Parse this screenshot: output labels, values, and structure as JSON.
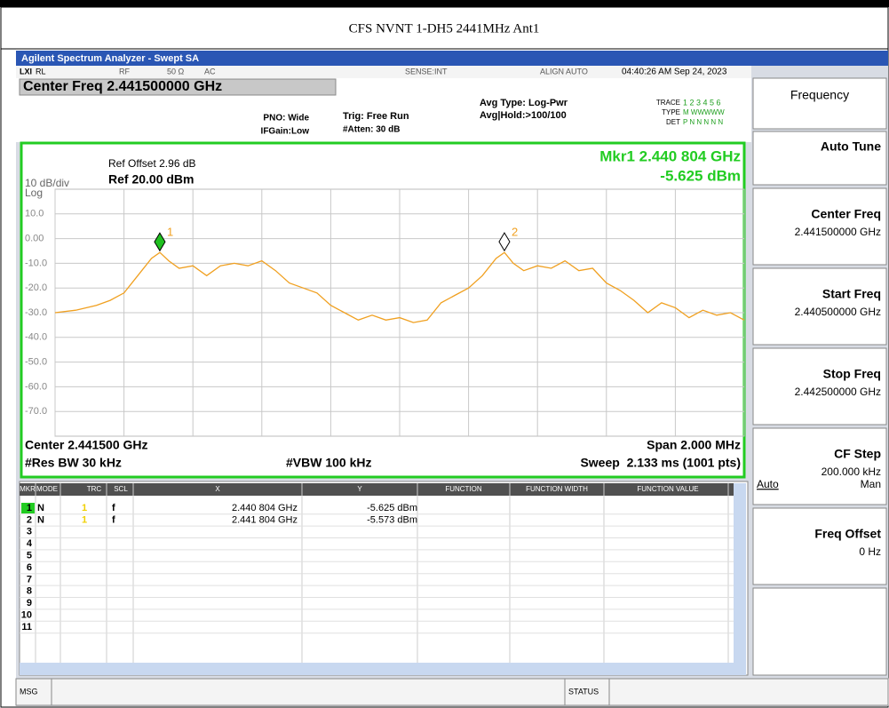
{
  "page_title": "CFS NVNT 1-DH5 2441MHz Ant1",
  "window_title": "Agilent Spectrum Analyzer - Swept SA",
  "status_bar": {
    "lxi": "LXI",
    "rl": "RL",
    "rf": "RF",
    "impedance": "50 Ω",
    "coupling": "AC",
    "sense": "SENSE:INT",
    "align": "ALIGN AUTO",
    "datetime": "04:40:26 AM Sep 24, 2023"
  },
  "settings": {
    "center_freq": "Center Freq 2.441500000 GHz",
    "pno": "PNO: Wide",
    "ifgain": "IFGain:Low",
    "trig": "Trig: Free Run",
    "atten": "#Atten: 30 dB",
    "avg_type": "Avg Type: Log-Pwr",
    "avg_hold": "Avg|Hold:>100/100",
    "trace_label": "TRACE",
    "trace_nums": "1 2 3 4 5 6",
    "type_label": "TYPE",
    "type_val": "M WWWWW",
    "det_label": "DET",
    "det_val": "P N N N N N"
  },
  "chart_data": {
    "type": "line",
    "ref_offset": "Ref Offset 2.96 dB",
    "scale": "10 dB/div",
    "ref": "Ref 20.00 dBm",
    "log": "Log",
    "marker_readout": [
      "Mkr1 2.440 804 GHz",
      "-5.625 dBm"
    ],
    "xlim": [
      2.4405,
      2.4425
    ],
    "xticks": [
      2.4405,
      2.4407,
      2.4409,
      2.4411,
      2.4413,
      2.4415,
      2.4417,
      2.4419,
      2.4421,
      2.4423,
      2.4425
    ],
    "ylim": [
      -80,
      20
    ],
    "yticks": [
      {
        "value": 10,
        "label": "10.0"
      },
      {
        "value": 0,
        "label": "0.00"
      },
      {
        "value": -10,
        "label": "-10.0"
      },
      {
        "value": -20,
        "label": "-20.0"
      },
      {
        "value": -30,
        "label": "-30.0"
      },
      {
        "value": -40,
        "label": "-40.0"
      },
      {
        "value": -50,
        "label": "-50.0"
      },
      {
        "value": -60,
        "label": "-60.0"
      },
      {
        "value": -70,
        "label": "-70.0"
      }
    ],
    "grid": true,
    "trace": {
      "color": "#f0a020",
      "x": [
        2.4405,
        2.44056,
        2.44062,
        2.44066,
        2.4407,
        2.44074,
        2.44078,
        2.440804,
        2.44083,
        2.44086,
        2.4409,
        2.44094,
        2.44098,
        2.44102,
        2.44106,
        2.4411,
        2.44114,
        2.44118,
        2.44122,
        2.44126,
        2.4413,
        2.44134,
        2.44138,
        2.44142,
        2.44146,
        2.4415,
        2.44154,
        2.44158,
        2.44162,
        2.44166,
        2.4417,
        2.44174,
        2.44178,
        2.441804,
        2.44183,
        2.44186,
        2.4419,
        2.44194,
        2.44198,
        2.44202,
        2.44206,
        2.4421,
        2.44214,
        2.44218,
        2.44222,
        2.44226,
        2.4423,
        2.44234,
        2.44238,
        2.44242,
        2.44246,
        2.4425
      ],
      "values": [
        -30,
        -29,
        -27,
        -25,
        -22,
        -15,
        -8,
        -5.6,
        -9,
        -12,
        -11,
        -15,
        -11,
        -10,
        -11,
        -9,
        -13,
        -18,
        -20,
        -22,
        -27,
        -30,
        -33,
        -31,
        -33,
        -32,
        -34,
        -33,
        -26,
        -23,
        -20,
        -15,
        -8,
        -5.6,
        -10,
        -13,
        -11,
        -12,
        -9,
        -13,
        -12,
        -18,
        -21,
        -25,
        -30,
        -26,
        -28,
        -32,
        -29,
        -31,
        -30,
        -33
      ]
    },
    "markers": [
      {
        "label": "1",
        "x": 2.440804,
        "y": -5.625,
        "color": "#20c020"
      },
      {
        "label": "2",
        "x": 2.441804,
        "y": -5.573,
        "color": "#ffffff"
      }
    ],
    "footer": {
      "center": "Center 2.441500 GHz",
      "span": "Span 2.000 MHz",
      "rbw": "#Res BW 30 kHz",
      "vbw": "#VBW 100 kHz",
      "sweep": "Sweep  2.133 ms (1001 pts)"
    }
  },
  "marker_table": {
    "headers": [
      "MKR",
      "MODE",
      "TRC",
      "SCL",
      "X",
      "Y",
      "FUNCTION",
      "FUNCTION WIDTH",
      "FUNCTION VALUE"
    ],
    "rows": [
      [
        "1",
        "N",
        "1",
        "f",
        "2.440 804 GHz",
        "-5.625 dBm"
      ],
      [
        "2",
        "N",
        "1",
        "f",
        "2.441 804 GHz",
        "-5.573 dBm"
      ],
      [
        "3"
      ],
      [
        "4"
      ],
      [
        "5"
      ],
      [
        "6"
      ],
      [
        "7"
      ],
      [
        "8"
      ],
      [
        "9"
      ],
      [
        "10"
      ],
      [
        "11"
      ]
    ]
  },
  "softkeys": {
    "menu": "Frequency",
    "keys": [
      {
        "title": "Auto Tune"
      },
      {
        "title": "Center Freq",
        "value": "2.441500000 GHz"
      },
      {
        "title": "Start Freq",
        "value": "2.440500000 GHz"
      },
      {
        "title": "Stop Freq",
        "value": "2.442500000 GHz"
      },
      {
        "title": "CF Step",
        "value": "200.000 kHz",
        "options": [
          "Auto",
          "Man"
        ]
      },
      {
        "title": "Freq Offset",
        "value": "0 Hz"
      }
    ]
  },
  "bottom_bar": {
    "msg": "MSG",
    "status": "STATUS"
  }
}
